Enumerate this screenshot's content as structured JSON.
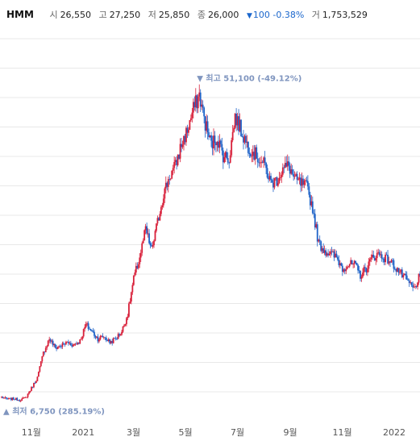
{
  "header": {
    "name": "HMM",
    "open_label": "시",
    "open": "26,550",
    "high_label": "고",
    "high": "27,250",
    "low_label": "저",
    "low": "25,850",
    "close_label": "종",
    "close": "26,000",
    "change_icon": "down-triangle-icon",
    "change": "100 -0.38%",
    "volume_label": "거",
    "volume": "1,753,529"
  },
  "chart_data": {
    "type": "candlestick",
    "title": "HMM",
    "x_tick_labels": [
      "11월",
      "2021",
      "3월",
      "5월",
      "7월",
      "9월",
      "11월",
      "2022"
    ],
    "y_range": [
      5000,
      58000
    ],
    "grid": true,
    "colors": {
      "up": "#d8203a",
      "down": "#1f63c8",
      "annotation": "#7f95bf",
      "grid": "#e8e8e8"
    },
    "annotations": {
      "max": {
        "marker": "▼",
        "label": "최고",
        "value": "51,100",
        "pct": "(-49.12%)"
      },
      "min": {
        "marker": "▲",
        "label": "최저",
        "value": "6,750",
        "pct": "(285.19%)"
      }
    },
    "series": [
      {
        "name": "close",
        "points": [
          [
            "2020-10-01",
            7200
          ],
          [
            "2020-10-08",
            6900
          ],
          [
            "2020-10-15",
            7000
          ],
          [
            "2020-10-22",
            6800
          ],
          [
            "2020-10-29",
            7100
          ],
          [
            "2020-11-05",
            8500
          ],
          [
            "2020-11-12",
            10000
          ],
          [
            "2020-11-19",
            13500
          ],
          [
            "2020-11-26",
            15500
          ],
          [
            "2020-12-03",
            14200
          ],
          [
            "2020-12-10",
            14500
          ],
          [
            "2020-12-17",
            15000
          ],
          [
            "2020-12-24",
            14600
          ],
          [
            "2021-01-01",
            15200
          ],
          [
            "2021-01-08",
            17500
          ],
          [
            "2021-01-15",
            16500
          ],
          [
            "2021-01-22",
            15500
          ],
          [
            "2021-01-29",
            15800
          ],
          [
            "2021-02-05",
            15000
          ],
          [
            "2021-02-12",
            15500
          ],
          [
            "2021-02-19",
            16500
          ],
          [
            "2021-02-26",
            19000
          ],
          [
            "2021-03-05",
            24000
          ],
          [
            "2021-03-12",
            27000
          ],
          [
            "2021-03-19",
            31000
          ],
          [
            "2021-03-26",
            28000
          ],
          [
            "2021-04-02",
            32000
          ],
          [
            "2021-04-09",
            36000
          ],
          [
            "2021-04-16",
            38500
          ],
          [
            "2021-04-23",
            40000
          ],
          [
            "2021-04-30",
            43000
          ],
          [
            "2021-05-07",
            45000
          ],
          [
            "2021-05-14",
            48000
          ],
          [
            "2021-05-21",
            50000
          ],
          [
            "2021-05-28",
            46000
          ],
          [
            "2021-06-04",
            43000
          ],
          [
            "2021-06-11",
            44000
          ],
          [
            "2021-06-18",
            41500
          ],
          [
            "2021-06-25",
            41000
          ],
          [
            "2021-07-02",
            47000
          ],
          [
            "2021-07-09",
            45000
          ],
          [
            "2021-07-16",
            43000
          ],
          [
            "2021-07-23",
            42000
          ],
          [
            "2021-07-30",
            41000
          ],
          [
            "2021-08-06",
            40000
          ],
          [
            "2021-08-13",
            37500
          ],
          [
            "2021-08-20",
            38000
          ],
          [
            "2021-08-27",
            39500
          ],
          [
            "2021-09-03",
            40000
          ],
          [
            "2021-09-10",
            38000
          ],
          [
            "2021-09-17",
            37500
          ],
          [
            "2021-09-24",
            37000
          ],
          [
            "2021-10-01",
            34000
          ],
          [
            "2021-10-08",
            29000
          ],
          [
            "2021-10-15",
            28000
          ],
          [
            "2021-10-22",
            27500
          ],
          [
            "2021-10-29",
            27000
          ],
          [
            "2021-11-05",
            25500
          ],
          [
            "2021-11-12",
            26000
          ],
          [
            "2021-11-19",
            26000
          ],
          [
            "2021-11-26",
            24500
          ],
          [
            "2021-12-03",
            25500
          ],
          [
            "2021-12-10",
            27000
          ],
          [
            "2021-12-17",
            27500
          ],
          [
            "2021-12-24",
            27000
          ],
          [
            "2021-12-31",
            26500
          ],
          [
            "2022-01-07",
            25500
          ],
          [
            "2022-01-14",
            24500
          ],
          [
            "2022-01-21",
            23500
          ],
          [
            "2022-01-28",
            22500
          ],
          [
            "2022-02-04",
            24500
          ]
        ]
      }
    ]
  }
}
